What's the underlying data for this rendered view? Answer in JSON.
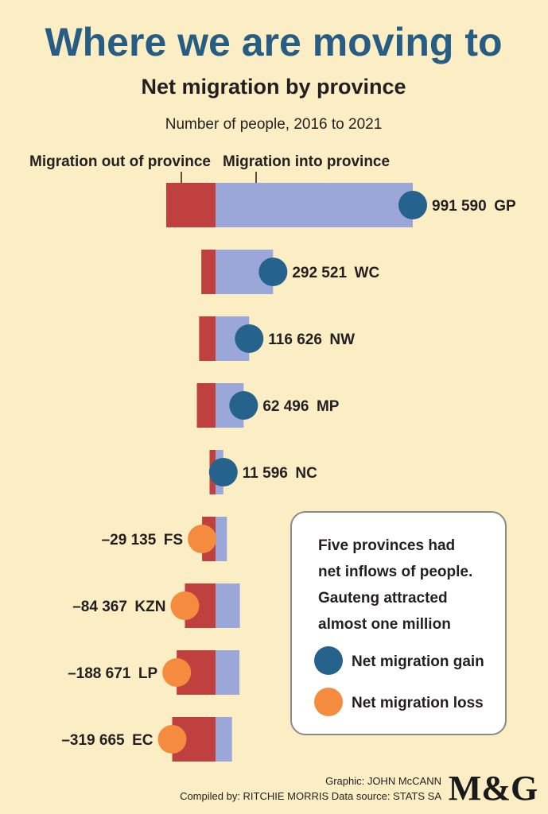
{
  "title": "Where we are moving to",
  "subtitle": "Net migration by province",
  "unit_note": "Number of people, 2016 to 2021",
  "column_headers": {
    "out": "Migration out of province",
    "in": "Migration into province"
  },
  "colors": {
    "background": "#fbeec4",
    "title": "#275d84",
    "out_bar": "#c0403f",
    "in_bar": "#9ba6d9",
    "gain_dot": "#25638d",
    "loss_dot": "#f58b3f"
  },
  "chart_data": {
    "type": "bar",
    "title": "Net migration by province",
    "subtitle": "Number of people, 2016 to 2021",
    "categories": [
      "GP",
      "WC",
      "NW",
      "MP",
      "NC",
      "FS",
      "KZN",
      "LP",
      "EC"
    ],
    "series": [
      {
        "name": "Migration out of province",
        "values": [
          330000,
          95000,
          110000,
          125000,
          40000,
          90000,
          205000,
          260000,
          290000
        ]
      },
      {
        "name": "Migration into province",
        "values": [
          1320000,
          385000,
          225000,
          188000,
          52000,
          76000,
          163000,
          160000,
          110000
        ]
      },
      {
        "name": "Net migration",
        "values": [
          991590,
          292521,
          116626,
          62496,
          11596,
          -29135,
          -84367,
          -188671,
          -319665
        ]
      }
    ],
    "net_labels": [
      "991 590",
      "292 521",
      "116 626",
      "62 496",
      "11 596",
      "–29 135",
      "–84 367",
      "–188 671",
      "–319 665"
    ],
    "legend": [
      {
        "label": "Net migration gain",
        "color": "#25638d"
      },
      {
        "label": "Net migration loss",
        "color": "#f58b3f"
      }
    ]
  },
  "info_box": {
    "lines": [
      "Five provinces had",
      "net inflows of people.",
      "Gauteng attracted",
      "almost one million"
    ]
  },
  "credits": {
    "graphic": "Graphic: JOHN McCANN",
    "compiled": "Compiled by: RITCHIE MORRIS  Data source: STATS SA"
  },
  "logo": "M&G"
}
